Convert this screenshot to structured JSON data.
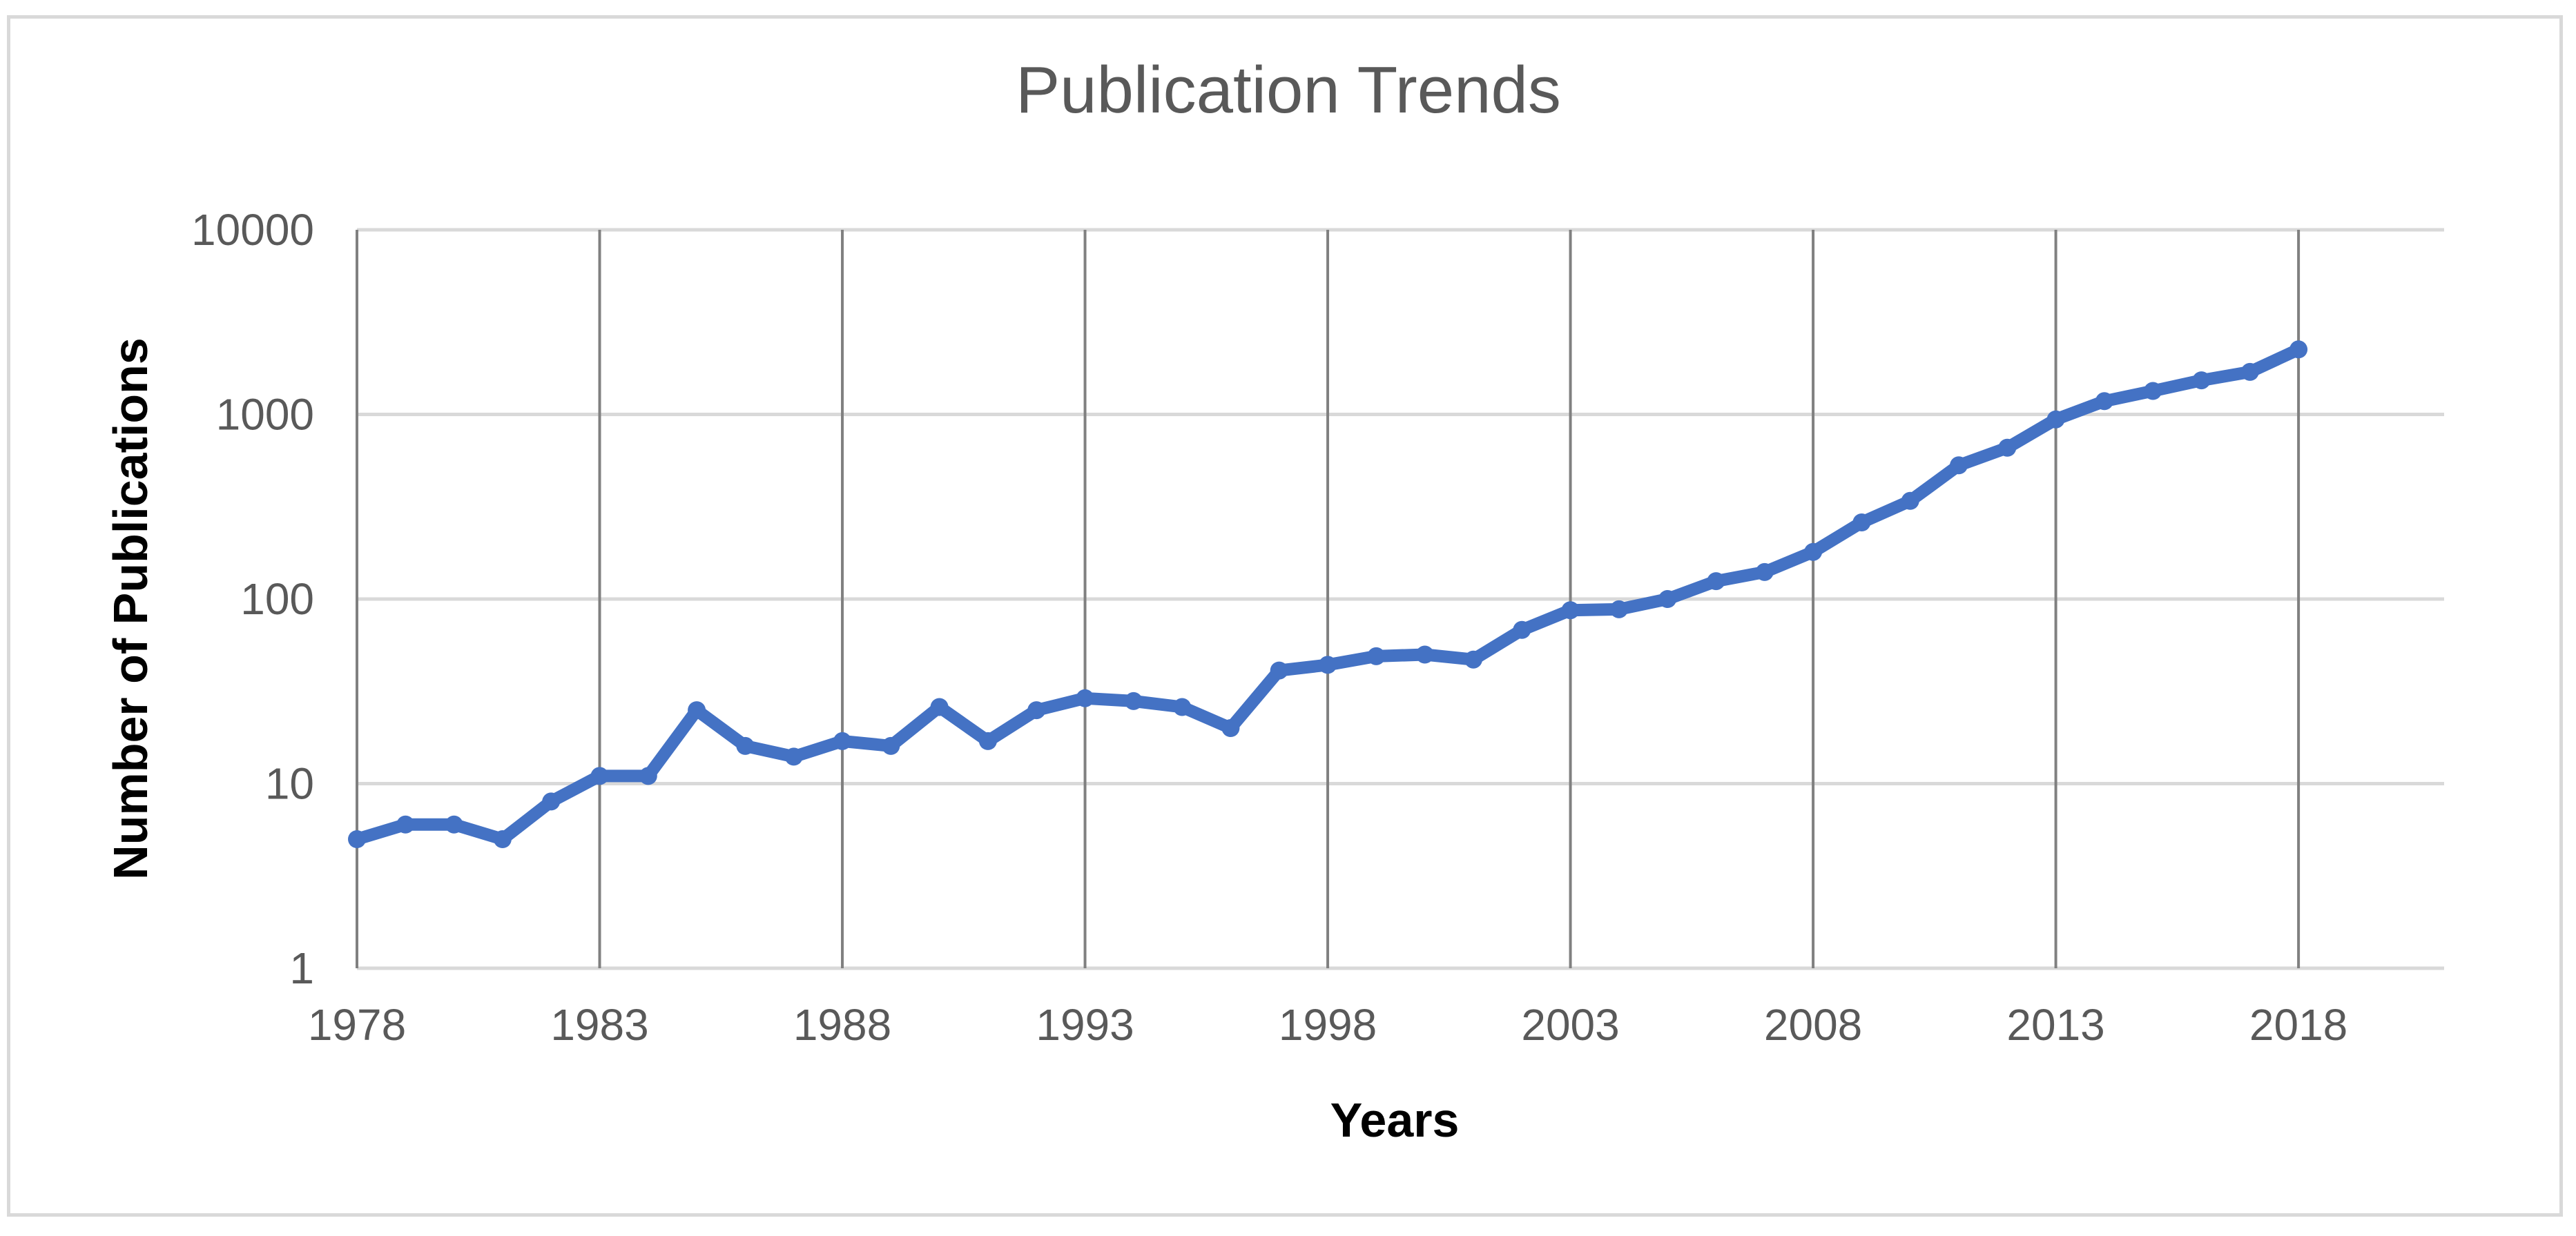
{
  "colors": {
    "series": "#4472c4",
    "gridline": "#d9d9d9",
    "vertical_gridline": "#808080",
    "text": "#595959",
    "frame": "#d9d9d9"
  },
  "chart_data": {
    "type": "line",
    "title": "Publication Trends",
    "xlabel": "Years",
    "ylabel": "Number of Publications",
    "y_scale": "log",
    "ylim": [
      1,
      10000
    ],
    "xlim": [
      1978,
      2021
    ],
    "x_ticks": [
      1978,
      1983,
      1988,
      1993,
      1998,
      2003,
      2008,
      2013,
      2018
    ],
    "x_tick_labels": [
      "1978",
      "1983",
      "1988",
      "1993",
      "1998",
      "2003",
      "2008",
      "2013",
      "2018"
    ],
    "y_ticks": [
      1,
      10,
      100,
      1000,
      10000
    ],
    "y_tick_labels": [
      "1",
      "10",
      "100",
      "1000",
      "10000"
    ],
    "grid": true,
    "legend": "none",
    "series": [
      {
        "x": [
          1978,
          1979,
          1980,
          1981,
          1982,
          1983,
          1984,
          1985,
          1986,
          1987,
          1988,
          1989,
          1990,
          1991,
          1992,
          1993,
          1994,
          1995,
          1996,
          1997,
          1998,
          1999,
          2000,
          2001,
          2002,
          2003,
          2004,
          2005,
          2006,
          2007,
          2008,
          2009,
          2010,
          2011,
          2012,
          2013,
          2014,
          2015,
          2016,
          2017,
          2018
        ],
        "values": [
          5,
          6,
          6,
          5,
          8,
          11,
          11,
          25,
          16,
          14,
          17,
          16,
          26,
          17,
          25,
          29,
          28,
          26,
          20,
          41,
          44,
          49,
          50,
          47,
          68,
          87,
          88,
          100,
          125,
          140,
          180,
          260,
          340,
          530,
          660,
          940,
          1180,
          1340,
          1530,
          1700,
          2250
        ]
      }
    ]
  }
}
